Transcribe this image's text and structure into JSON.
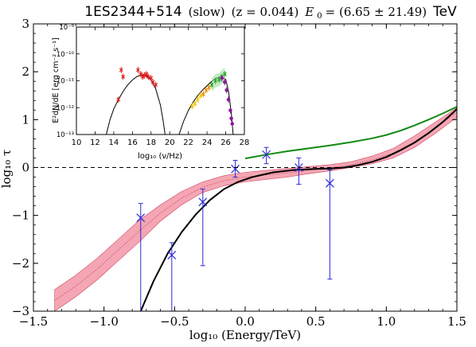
{
  "title": {
    "source": "1ES2344+514",
    "state": "(slow)",
    "redshift": "(z = 0.044)",
    "energy": "E",
    "energy_sub": "0",
    "energy_value": " = (6.65 ± 21.49)",
    "unit": "TeV"
  },
  "colors": {
    "band_fill": "#f4a6b4",
    "band_edge": "#d0455e",
    "model": "#000000",
    "reference": "#138a13",
    "points": "#2b2bd6",
    "dashed": "#000000"
  },
  "chart_data": [
    {
      "type": "line",
      "xlabel": "log₁₀ (Energy/TeV)",
      "ylabel": "log₁₀ τ",
      "xlim": [
        -1.5,
        1.5
      ],
      "ylim": [
        -3,
        3
      ],
      "grid": false,
      "xticks": [
        "−1.5",
        "−1.0",
        "−0.5",
        "0.0",
        "0.5",
        "1.0",
        "1.5"
      ],
      "yticks": [
        "−3",
        "−2",
        "−1",
        "0",
        "1",
        "2",
        "3"
      ],
      "series": [
        {
          "kind": "band",
          "x": [
            -1.35,
            -1.2,
            -1.05,
            -0.9,
            -0.75,
            -0.6,
            -0.45,
            -0.3,
            -0.15,
            0.0,
            0.15,
            0.3,
            0.45,
            0.6,
            0.75,
            0.9,
            1.05,
            1.2,
            1.35,
            1.5
          ],
          "y_low": [
            -3.0,
            -2.7,
            -2.35,
            -1.95,
            -1.55,
            -1.12,
            -0.78,
            -0.52,
            -0.38,
            -0.3,
            -0.25,
            -0.2,
            -0.13,
            -0.07,
            0.0,
            0.08,
            0.2,
            0.42,
            0.72,
            1.05
          ],
          "y_high": [
            -2.55,
            -2.25,
            -1.9,
            -1.5,
            -1.1,
            -0.78,
            -0.5,
            -0.3,
            -0.17,
            -0.1,
            -0.06,
            -0.02,
            0.02,
            0.06,
            0.12,
            0.24,
            0.4,
            0.66,
            0.95,
            1.25
          ]
        },
        {
          "kind": "line",
          "x": [
            -0.74,
            -0.65,
            -0.55,
            -0.45,
            -0.35,
            -0.25,
            -0.15,
            -0.05,
            0.05,
            0.2,
            0.35,
            0.5,
            0.6,
            0.7,
            0.8,
            0.9,
            1.0,
            1.1,
            1.2,
            1.3,
            1.4,
            1.5
          ],
          "y": [
            -3.0,
            -2.38,
            -1.8,
            -1.35,
            -0.98,
            -0.68,
            -0.45,
            -0.3,
            -0.2,
            -0.1,
            -0.05,
            -0.03,
            -0.02,
            0.0,
            0.05,
            0.12,
            0.22,
            0.36,
            0.52,
            0.72,
            0.95,
            1.22
          ]
        },
        {
          "kind": "line",
          "x": [
            0.0,
            0.15,
            0.3,
            0.45,
            0.6,
            0.75,
            0.9,
            1.0,
            1.1,
            1.2,
            1.3,
            1.4,
            1.5
          ],
          "y": [
            0.19,
            0.27,
            0.34,
            0.4,
            0.46,
            0.53,
            0.61,
            0.68,
            0.77,
            0.88,
            1.0,
            1.13,
            1.27
          ]
        },
        {
          "kind": "points",
          "x": [
            -0.74,
            -0.52,
            -0.3,
            -0.07,
            0.15,
            0.38,
            0.6
          ],
          "y": [
            -1.05,
            -1.83,
            -0.72,
            -0.03,
            0.27,
            0.0,
            -0.33
          ],
          "yerr_low": [
            -3.0,
            -3.0,
            -2.05,
            -0.2,
            0.08,
            -0.35,
            -2.33
          ],
          "yerr_high": [
            -0.75,
            -1.57,
            -0.45,
            0.15,
            0.42,
            0.2,
            -0.05
          ]
        },
        {
          "kind": "hline",
          "y": 0
        }
      ]
    },
    {
      "type": "scatter",
      "xlabel": "log₁₀ (ν/Hz)",
      "ylabel": "E²dN/dE [erg cm⁻² s⁻¹]",
      "xlim": [
        10,
        28
      ],
      "ylim": [
        -13,
        -9
      ],
      "log_y": true,
      "xticks": [
        "10",
        "12",
        "14",
        "16",
        "18",
        "20",
        "22",
        "24",
        "26",
        "28"
      ],
      "yticks": [
        "10⁻¹³",
        "10⁻¹²",
        "10⁻¹¹",
        "10⁻¹⁰",
        "10⁻⁹"
      ],
      "series": [
        {
          "kind": "line",
          "x": [
            13.2,
            13.6,
            14.0,
            14.5,
            15.0,
            15.5,
            16.0,
            16.5,
            17.0,
            17.5,
            18.0,
            18.5,
            19.0,
            19.3,
            19.5
          ],
          "y": [
            -13.0,
            -12.45,
            -12.05,
            -11.7,
            -11.4,
            -11.15,
            -10.97,
            -10.84,
            -10.78,
            -10.82,
            -10.98,
            -11.3,
            -11.9,
            -12.5,
            -13.0
          ]
        },
        {
          "kind": "line",
          "x": [
            21.0,
            21.5,
            22.0,
            22.5,
            23.0,
            23.5,
            24.0,
            24.5,
            25.0,
            25.5,
            26.0,
            26.3,
            26.6,
            26.8
          ],
          "y": [
            -13.0,
            -12.5,
            -12.1,
            -11.8,
            -11.55,
            -11.35,
            -11.18,
            -11.02,
            -10.9,
            -10.85,
            -10.95,
            -11.4,
            -12.2,
            -13.0
          ]
        },
        {
          "kind": "points",
          "name": "",
          "color": "#dd1a1a",
          "x": [
            14.5,
            14.8,
            15.0,
            16.6,
            16.9,
            17.1,
            17.3,
            17.5,
            17.7,
            18.0,
            18.2,
            18.5
          ],
          "y": [
            -11.7,
            -10.6,
            -10.85,
            -10.6,
            -10.75,
            -10.85,
            -10.8,
            -10.75,
            -10.85,
            -10.9,
            -11.05,
            -11.15
          ]
        },
        {
          "kind": "points",
          "color": "#f0c400",
          "x": [
            22.4,
            22.7,
            23.0,
            23.3
          ],
          "y": [
            -11.95,
            -11.85,
            -11.7,
            -11.55
          ]
        },
        {
          "kind": "points",
          "color": "#ee8a00",
          "x": [
            23.6,
            23.9,
            24.2
          ],
          "y": [
            -11.5,
            -11.35,
            -11.25
          ]
        },
        {
          "kind": "points",
          "color": "#22a222",
          "x": [
            24.5,
            24.9,
            25.3,
            25.6,
            25.9
          ],
          "y": [
            -11.15,
            -11.0,
            -10.95,
            -10.85,
            -10.75
          ]
        },
        {
          "kind": "points",
          "color": "#8a1a9a",
          "x": [
            25.6,
            25.9,
            26.1,
            26.3,
            26.5,
            26.6,
            26.7
          ],
          "y": [
            -10.9,
            -11.05,
            -11.35,
            -11.7,
            -12.1,
            -12.4,
            -12.6
          ]
        }
      ]
    }
  ]
}
